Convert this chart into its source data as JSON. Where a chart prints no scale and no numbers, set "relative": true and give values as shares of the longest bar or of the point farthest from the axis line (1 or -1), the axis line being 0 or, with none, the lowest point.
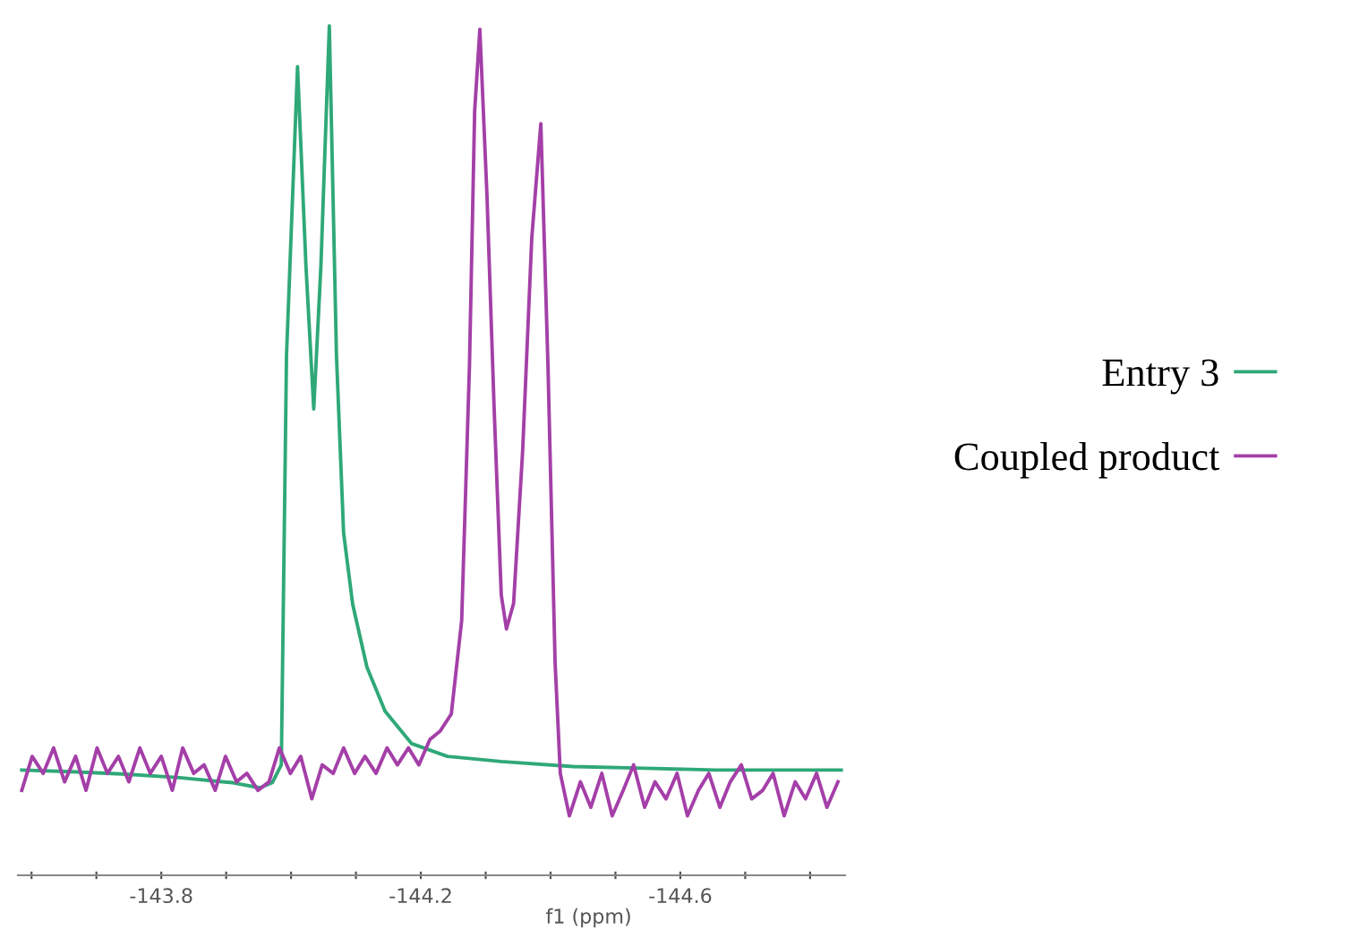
{
  "chart_data": {
    "type": "line",
    "relative": true,
    "xlabel": "f1 (ppm)",
    "legend": "right",
    "grid": false,
    "tick_labels": "x",
    "xlim": [
      -143.579,
      -144.854
    ],
    "xticks": [
      {
        "value": -143.6,
        "label": null
      },
      {
        "value": -143.7,
        "label": null
      },
      -143.8,
      {
        "value": -143.9,
        "label": null
      },
      {
        "value": -144.0,
        "label": null
      },
      {
        "value": -144.1,
        "label": null
      },
      -144.2,
      {
        "value": -144.3,
        "label": null
      },
      {
        "value": -144.4,
        "label": null
      },
      {
        "value": -144.5,
        "label": null
      },
      -144.6,
      {
        "value": -144.7,
        "label": null
      },
      {
        "value": -144.8,
        "label": null
      }
    ],
    "series": [
      {
        "name": "Entry 3",
        "color": "#2fa878",
        "x": [
          -143.585,
          -143.662,
          -143.745,
          -143.828,
          -143.91,
          -143.952,
          -143.971,
          -143.985,
          -143.993,
          -144.01,
          -144.023,
          -144.035,
          -144.046,
          -144.059,
          -144.07,
          -144.081,
          -144.095,
          -144.117,
          -144.145,
          -144.186,
          -144.241,
          -144.324,
          -144.435,
          -144.545,
          -144.655,
          -144.766,
          -144.848
        ],
        "values": [
          0.124,
          0.122,
          0.119,
          0.115,
          0.109,
          0.103,
          0.109,
          0.13,
          0.612,
          0.952,
          0.717,
          0.549,
          0.717,
          1.0,
          0.612,
          0.403,
          0.319,
          0.245,
          0.193,
          0.155,
          0.14,
          0.134,
          0.128,
          0.126,
          0.124,
          0.124,
          0.124
        ]
      },
      {
        "name": "Coupled product",
        "color": "#a43fa8",
        "x": [
          -143.585,
          -143.601,
          -143.618,
          -143.634,
          -143.651,
          -143.668,
          -143.684,
          -143.701,
          -143.717,
          -143.734,
          -143.75,
          -143.767,
          -143.783,
          -143.8,
          -143.817,
          -143.833,
          -143.85,
          -143.866,
          -143.883,
          -143.899,
          -143.916,
          -143.932,
          -143.949,
          -143.966,
          -143.982,
          -143.999,
          -144.015,
          -144.032,
          -144.048,
          -144.065,
          -144.081,
          -144.098,
          -144.114,
          -144.131,
          -144.148,
          -144.164,
          -144.181,
          -144.197,
          -144.214,
          -144.23,
          -144.247,
          -144.263,
          -144.275,
          -144.283,
          -144.291,
          -144.302,
          -144.313,
          -144.324,
          -144.332,
          -144.343,
          -144.357,
          -144.371,
          -144.385,
          -144.396,
          -144.407,
          -144.415,
          -144.429,
          -144.446,
          -144.462,
          -144.479,
          -144.495,
          -144.512,
          -144.528,
          -144.545,
          -144.561,
          -144.578,
          -144.595,
          -144.611,
          -144.628,
          -144.644,
          -144.661,
          -144.677,
          -144.694,
          -144.71,
          -144.727,
          -144.743,
          -144.76,
          -144.777,
          -144.793,
          -144.81,
          -144.826,
          -144.843
        ],
        "values": [
          0.1,
          0.14,
          0.12,
          0.15,
          0.11,
          0.14,
          0.1,
          0.15,
          0.12,
          0.14,
          0.11,
          0.15,
          0.12,
          0.14,
          0.1,
          0.15,
          0.12,
          0.13,
          0.1,
          0.14,
          0.11,
          0.12,
          0.1,
          0.11,
          0.15,
          0.12,
          0.14,
          0.09,
          0.13,
          0.12,
          0.15,
          0.12,
          0.14,
          0.12,
          0.15,
          0.13,
          0.15,
          0.13,
          0.16,
          0.17,
          0.19,
          0.3,
          0.6,
          0.9,
          0.996,
          0.8,
          0.55,
          0.33,
          0.29,
          0.32,
          0.5,
          0.75,
          0.885,
          0.6,
          0.25,
          0.12,
          0.07,
          0.11,
          0.08,
          0.12,
          0.07,
          0.1,
          0.13,
          0.08,
          0.11,
          0.09,
          0.12,
          0.07,
          0.1,
          0.12,
          0.08,
          0.11,
          0.13,
          0.09,
          0.1,
          0.12,
          0.07,
          0.11,
          0.09,
          0.12,
          0.08,
          0.11
        ]
      }
    ]
  }
}
